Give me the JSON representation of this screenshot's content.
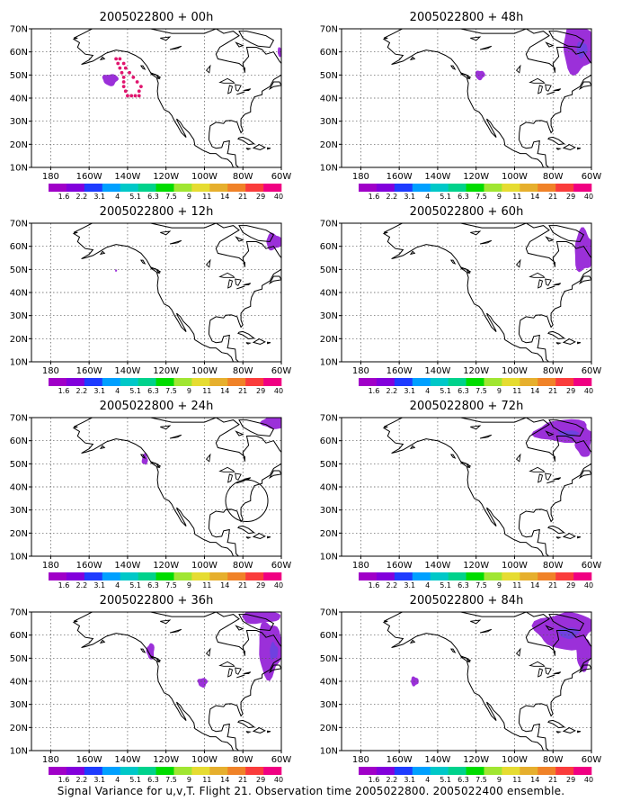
{
  "caption": "Signal Variance for u,v,T. Flight 21. Observation time 2005022800. 2005022400 ensemble.",
  "map_axes": {
    "lat_labels": [
      "10N",
      "20N",
      "30N",
      "40N",
      "50N",
      "60N",
      "70N"
    ],
    "lon_labels": [
      "180",
      "160W",
      "140W",
      "120W",
      "100W",
      "80W",
      "60W"
    ],
    "lat_values": [
      10,
      20,
      30,
      40,
      50,
      60,
      70
    ],
    "lon_values": [
      -180,
      -160,
      -140,
      -120,
      -100,
      -80,
      -60
    ]
  },
  "colorbar": {
    "labels": [
      "1.6",
      "2.2",
      "3.1",
      "4",
      "5.1",
      "6.3",
      "7.5",
      "9",
      "11",
      "14",
      "21",
      "29",
      "40"
    ],
    "colors": [
      "#a000c8",
      "#8200dc",
      "#1e3cff",
      "#00a0ff",
      "#00c8c8",
      "#00d28c",
      "#00dc00",
      "#a0e632",
      "#e6dc32",
      "#e6af2d",
      "#f08228",
      "#fa3c3c",
      "#f00082"
    ]
  },
  "colors": {
    "signal": "#9b30d9",
    "signal_dark": "#4b50e6",
    "obs_track": "#e0156e",
    "coast": "#000000",
    "grid": "#555555"
  },
  "panels": [
    {
      "title": "2005022800 + 00h",
      "lead": "00h",
      "blobs": [
        {
          "lon": -149,
          "lat": 48,
          "rlon": 4,
          "rlat": 2.5
        },
        {
          "lon": -60.5,
          "lat": 60,
          "rlon": 1.5,
          "rlat": 2
        }
      ],
      "track": [
        [
          -146,
          57
        ],
        [
          -145,
          55
        ],
        [
          -144,
          53
        ],
        [
          -143,
          51
        ],
        [
          -142,
          49
        ],
        [
          -142,
          47
        ],
        [
          -142,
          45
        ],
        [
          -141,
          43
        ],
        [
          -140,
          41
        ],
        [
          -138,
          41
        ],
        [
          -136,
          41
        ],
        [
          -134,
          41
        ],
        [
          -134,
          43
        ],
        [
          -133,
          45
        ],
        [
          -135,
          47
        ],
        [
          -137,
          49
        ],
        [
          -139,
          51
        ],
        [
          -141,
          53
        ],
        [
          -142,
          55
        ],
        [
          -144,
          57
        ]
      ],
      "circle": null
    },
    {
      "title": "2005022800 + 12h",
      "lead": "12h",
      "blobs": [
        {
          "lon": -64,
          "lat": 62,
          "rlon": 4,
          "rlat": 3.5
        },
        {
          "lon": -146,
          "lat": 49.5,
          "rlon": 0.5,
          "rlat": 0.5
        }
      ],
      "track": [],
      "circle": null
    },
    {
      "title": "2005022800 + 24h",
      "lead": "24h",
      "blobs": [
        {
          "lon": -131,
          "lat": 52,
          "rlon": 1.5,
          "rlat": 2.5
        },
        {
          "lon": -64,
          "lat": 68,
          "rlon": 6,
          "rlat": 3
        }
      ],
      "track": [],
      "circle": {
        "lon": -78,
        "lat": 34,
        "rlon": 11,
        "rlat": 9
      }
    },
    {
      "title": "2005022800 + 36h",
      "lead": "36h",
      "blobs": [
        {
          "lon": -128,
          "lat": 53,
          "rlon": 2,
          "rlat": 3.5
        },
        {
          "lon": -101,
          "lat": 39.5,
          "rlon": 2.5,
          "rlat": 2
        },
        {
          "lon": -66,
          "lat": 54,
          "rlon": 6,
          "rlat": 12
        },
        {
          "lon": -71,
          "lat": 68,
          "rlon": 10,
          "rlat": 3
        }
      ],
      "track": [],
      "circle": null
    },
    {
      "title": "2005022800 + 48h",
      "lead": "48h",
      "blobs": [
        {
          "lon": -118,
          "lat": 50,
          "rlon": 2.5,
          "rlat": 2
        },
        {
          "lon": -67,
          "lat": 62,
          "rlon": 8,
          "rlat": 11
        }
      ],
      "track": [],
      "circle": null
    },
    {
      "title": "2005022800 + 60h",
      "lead": "60h",
      "blobs": [
        {
          "lon": -64,
          "lat": 58,
          "rlon": 5,
          "rlat": 9
        }
      ],
      "track": [],
      "circle": null
    },
    {
      "title": "2005022800 + 72h",
      "lead": "72h",
      "blobs": [
        {
          "lon": -74,
          "lat": 64,
          "rlon": 15,
          "rlat": 5
        },
        {
          "lon": -64,
          "lat": 58,
          "rlon": 4,
          "rlat": 5
        }
      ],
      "track": [],
      "circle": null
    },
    {
      "title": "2005022800 + 84h",
      "lead": "84h",
      "blobs": [
        {
          "lon": -74,
          "lat": 62,
          "rlon": 15,
          "rlat": 8
        },
        {
          "lon": -64,
          "lat": 52,
          "rlon": 4,
          "rlat": 7
        },
        {
          "lon": -152,
          "lat": 40,
          "rlon": 2,
          "rlat": 2
        }
      ],
      "track": [],
      "circle": null
    }
  ]
}
